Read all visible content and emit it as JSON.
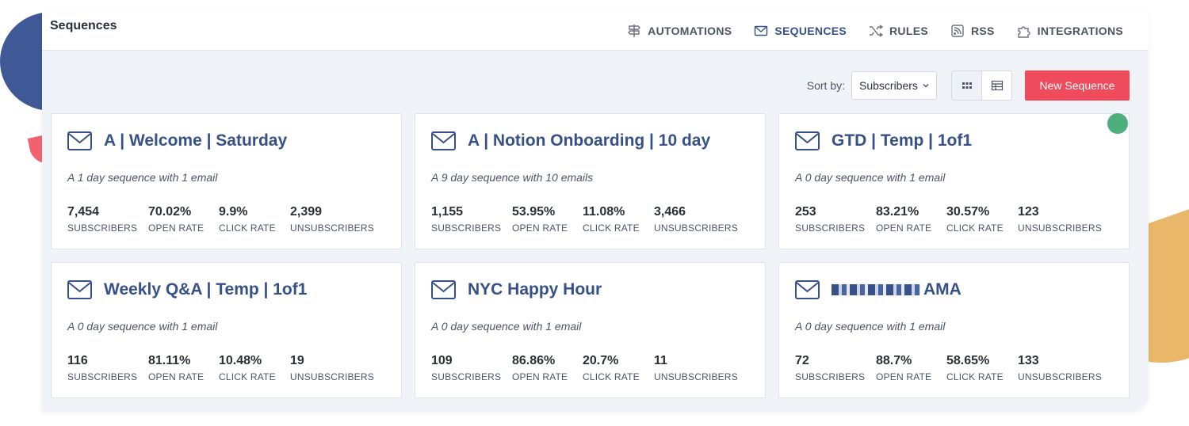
{
  "header": {
    "title": "Sequences",
    "nav": [
      {
        "label": "AUTOMATIONS",
        "icon": "signpost-icon",
        "active": false
      },
      {
        "label": "SEQUENCES",
        "icon": "envelope-icon",
        "active": true
      },
      {
        "label": "RULES",
        "icon": "shuffle-icon",
        "active": false
      },
      {
        "label": "RSS",
        "icon": "rss-icon",
        "active": false
      },
      {
        "label": "INTEGRATIONS",
        "icon": "puzzle-icon",
        "active": false
      }
    ]
  },
  "toolbar": {
    "sort_label": "Sort by:",
    "sort_value": "Subscribers",
    "new_button": "New Sequence"
  },
  "stat_labels": [
    "SUBSCRIBERS",
    "OPEN RATE",
    "CLICK RATE",
    "UNSUBSCRIBERS"
  ],
  "sequences": [
    {
      "title": "A | Welcome | Saturday",
      "description": "A 1 day sequence with 1 email",
      "subscribers": "7,454",
      "open_rate": "70.02%",
      "click_rate": "9.9%",
      "unsubscribers": "2,399"
    },
    {
      "title": "A | Notion Onboarding | 10 day",
      "description": "A 9 day sequence with 10 emails",
      "subscribers": "1,155",
      "open_rate": "53.95%",
      "click_rate": "11.08%",
      "unsubscribers": "3,466"
    },
    {
      "title": "GTD | Temp | 1of1",
      "description": "A 0 day sequence with 1 email",
      "subscribers": "253",
      "open_rate": "83.21%",
      "click_rate": "30.57%",
      "unsubscribers": "123"
    },
    {
      "title": "Weekly Q&A | Temp | 1of1",
      "description": "A 0 day sequence with 1 email",
      "subscribers": "116",
      "open_rate": "81.11%",
      "click_rate": "10.48%",
      "unsubscribers": "19"
    },
    {
      "title": "NYC Happy Hour",
      "description": "A 0 day sequence with 1 email",
      "subscribers": "109",
      "open_rate": "86.86%",
      "click_rate": "20.7%",
      "unsubscribers": "11"
    },
    {
      "title": "AMA",
      "description": "A 0 day sequence with 1 email",
      "subscribers": "72",
      "open_rate": "88.7%",
      "click_rate": "58.65%",
      "unsubscribers": "133"
    }
  ]
}
